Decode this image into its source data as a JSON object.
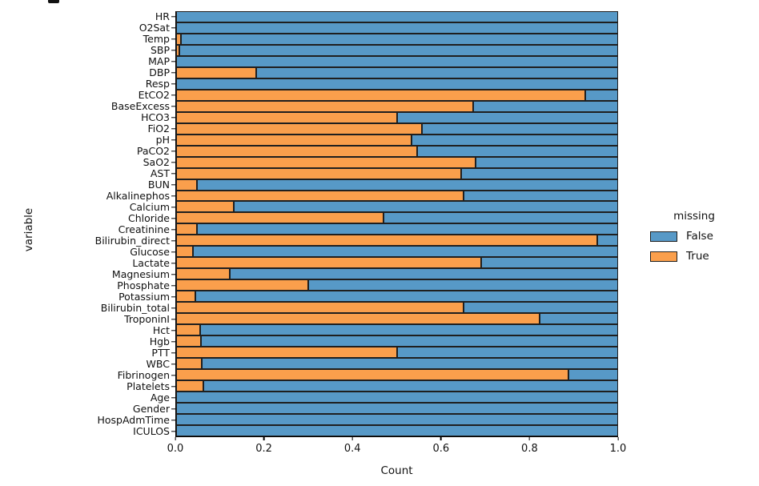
{
  "figure": {
    "background": "#ffffff"
  },
  "chart_data": {
    "type": "bar",
    "orientation": "horizontal",
    "mode": "stacked-normalized-fill",
    "title": "",
    "xlabel": "Count",
    "ylabel": "variable",
    "xlim": [
      0.0,
      1.0
    ],
    "xticks": [
      "0.0",
      "0.2",
      "0.4",
      "0.6",
      "0.8",
      "1.0"
    ],
    "grid": false,
    "bar_edge_color": "#1f1f1f",
    "legend": {
      "title": "missing",
      "position": "right-outside",
      "entries": [
        {
          "label": "False",
          "color": "#5799C7"
        },
        {
          "label": "True",
          "color": "#FA9F4C"
        }
      ]
    },
    "categories": [
      "HR",
      "O2Sat",
      "Temp",
      "SBP",
      "MAP",
      "DBP",
      "Resp",
      "EtCO2",
      "BaseExcess",
      "HCO3",
      "FiO2",
      "pH",
      "PaCO2",
      "SaO2",
      "AST",
      "BUN",
      "Alkalinephos",
      "Calcium",
      "Chloride",
      "Creatinine",
      "Bilirubin_direct",
      "Glucose",
      "Lactate",
      "Magnesium",
      "Phosphate",
      "Potassium",
      "Bilirubin_total",
      "TroponinI",
      "Hct",
      "Hgb",
      "PTT",
      "WBC",
      "Fibrinogen",
      "Platelets",
      "Age",
      "Gender",
      "HospAdmTime",
      "ICULOS"
    ],
    "series": [
      {
        "name": "True",
        "color": "#FA9F4C",
        "values": [
          0.0,
          0.0,
          0.01,
          0.007,
          0.0,
          0.181,
          0.0,
          0.925,
          0.672,
          0.5,
          0.557,
          0.532,
          0.545,
          0.678,
          0.645,
          0.047,
          0.65,
          0.13,
          0.47,
          0.047,
          0.952,
          0.038,
          0.69,
          0.121,
          0.299,
          0.044,
          0.65,
          0.823,
          0.054,
          0.056,
          0.5,
          0.058,
          0.888,
          0.061,
          0.0,
          0.0,
          0.0,
          0.0
        ]
      },
      {
        "name": "False",
        "color": "#5799C7",
        "values": [
          1.0,
          1.0,
          0.99,
          0.993,
          1.0,
          0.819,
          1.0,
          0.075,
          0.328,
          0.5,
          0.443,
          0.468,
          0.455,
          0.322,
          0.355,
          0.953,
          0.35,
          0.87,
          0.53,
          0.953,
          0.048,
          0.962,
          0.31,
          0.879,
          0.701,
          0.956,
          0.35,
          0.177,
          0.946,
          0.944,
          0.5,
          0.942,
          0.112,
          0.939,
          1.0,
          1.0,
          1.0,
          1.0
        ]
      }
    ]
  }
}
